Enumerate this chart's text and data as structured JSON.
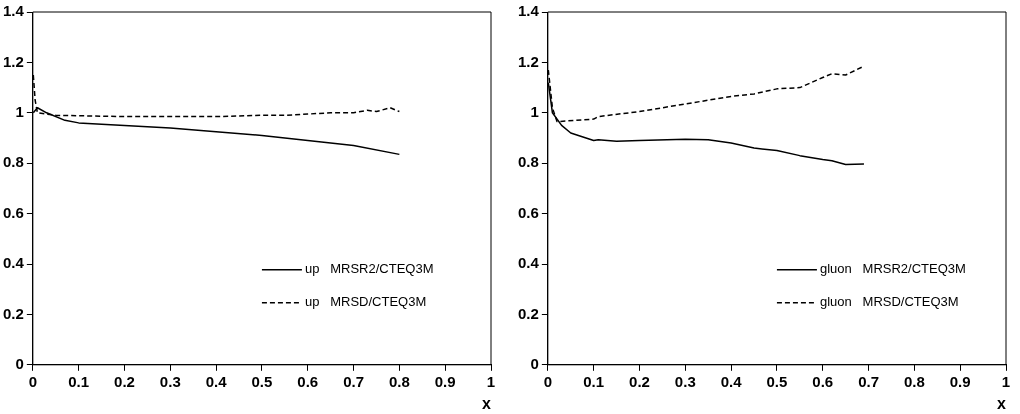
{
  "chart_data": [
    {
      "type": "line",
      "xlabel": "x",
      "xlim": [
        0,
        1
      ],
      "xticks": [
        0,
        0.1,
        0.2,
        0.3,
        0.4,
        0.5,
        0.6,
        0.7,
        0.8,
        0.9,
        1
      ],
      "ylim": [
        0,
        1.4
      ],
      "yticks": [
        0,
        0.2,
        0.4,
        0.6,
        0.8,
        1,
        1.2,
        1.4
      ],
      "grid": false,
      "legend": "bottom right",
      "marker": "none",
      "series": [
        {
          "name": "up   MRSR2/CTEQ3M",
          "color": "#000000",
          "line_style": "solid",
          "x": [
            0.001,
            0.01,
            0.03,
            0.07,
            0.1,
            0.2,
            0.3,
            0.4,
            0.5,
            0.6,
            0.7,
            0.8
          ],
          "values": [
            1.0,
            1.02,
            1.0,
            0.97,
            0.96,
            0.95,
            0.94,
            0.925,
            0.91,
            0.89,
            0.87,
            0.835
          ]
        },
        {
          "name": "up   MRSD/CTEQ3M",
          "color": "#000000",
          "line_style": "dashed",
          "x": [
            0.001,
            0.005,
            0.01,
            0.05,
            0.2,
            0.4,
            0.5,
            0.55,
            0.6,
            0.65,
            0.7,
            0.73,
            0.75,
            0.78,
            0.8
          ],
          "values": [
            1.15,
            1.05,
            1.0,
            0.99,
            0.985,
            0.985,
            0.99,
            0.99,
            0.995,
            1.0,
            1.0,
            1.01,
            1.005,
            1.02,
            1.005
          ]
        }
      ]
    },
    {
      "type": "line",
      "xlabel": "x",
      "xlim": [
        0,
        1
      ],
      "xticks": [
        0,
        0.1,
        0.2,
        0.3,
        0.4,
        0.5,
        0.6,
        0.7,
        0.8,
        0.9,
        1
      ],
      "ylim": [
        0,
        1.4
      ],
      "yticks": [
        0,
        0.2,
        0.4,
        0.6,
        0.8,
        1,
        1.2,
        1.4
      ],
      "grid": false,
      "legend": "bottom right",
      "marker": "none",
      "series": [
        {
          "name": "gluon   MRSR2/CTEQ3M",
          "color": "#000000",
          "line_style": "solid",
          "x": [
            0.001,
            0.01,
            0.03,
            0.05,
            0.1,
            0.11,
            0.15,
            0.2,
            0.3,
            0.35,
            0.4,
            0.45,
            0.5,
            0.55,
            0.6,
            0.62,
            0.65,
            0.69
          ],
          "values": [
            1.12,
            1.0,
            0.95,
            0.92,
            0.89,
            0.893,
            0.887,
            0.89,
            0.895,
            0.893,
            0.88,
            0.86,
            0.85,
            0.83,
            0.815,
            0.81,
            0.795,
            0.797
          ]
        },
        {
          "name": "gluon   MRSD/CTEQ3M",
          "color": "#000000",
          "line_style": "dashed",
          "x": [
            0.001,
            0.01,
            0.02,
            0.1,
            0.11,
            0.2,
            0.3,
            0.4,
            0.45,
            0.5,
            0.55,
            0.6,
            0.62,
            0.65,
            0.69
          ],
          "values": [
            1.17,
            1.02,
            0.965,
            0.975,
            0.985,
            1.005,
            1.035,
            1.065,
            1.075,
            1.095,
            1.1,
            1.14,
            1.155,
            1.15,
            1.185
          ]
        }
      ]
    }
  ]
}
